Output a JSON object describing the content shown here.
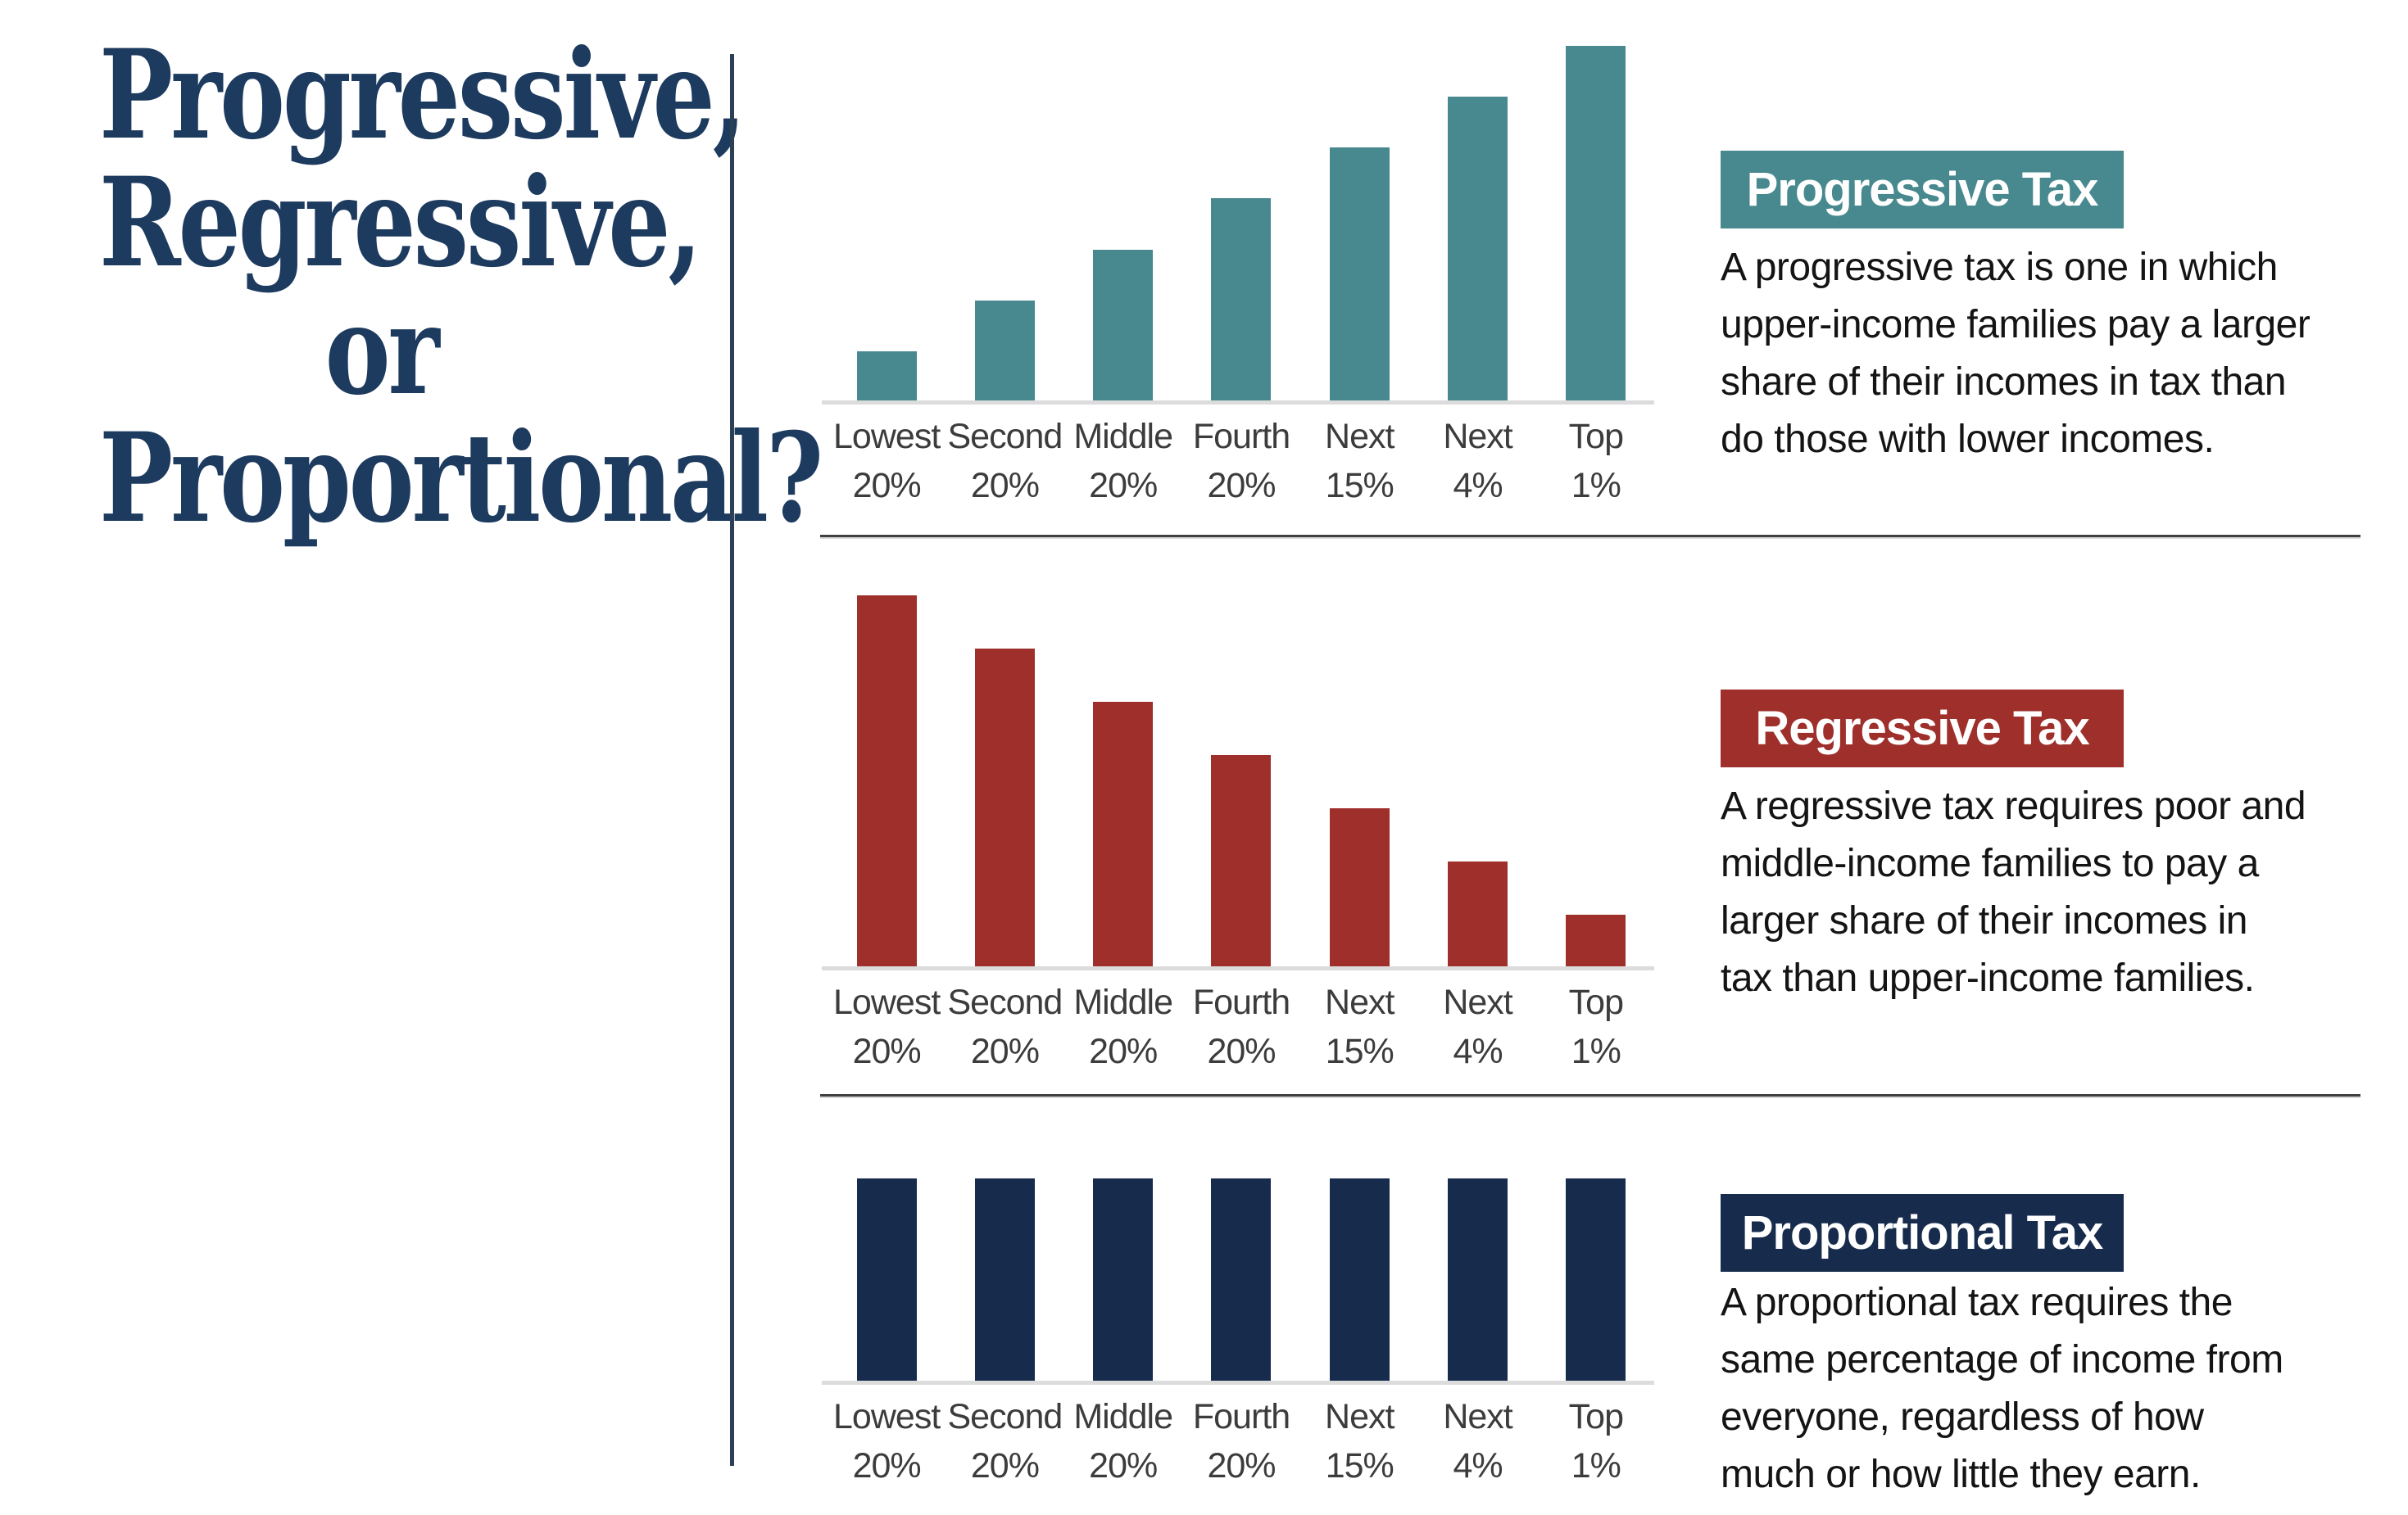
{
  "title": "Progressive,\nRegressive, or\nProportional?",
  "colors": {
    "title_navy": "#1d3a5f",
    "divider_navy": "#2b4054",
    "separator_gray": "#3f3f3f",
    "axis_gray": "#dcdcdc",
    "label_gray": "#3c3c3c",
    "teal": "#47898e",
    "red": "#9e2f2b",
    "navy": "#172c4d",
    "badge_text": "#ffffff"
  },
  "category_labels": [
    {
      "line1": "Lowest",
      "line2": "20%"
    },
    {
      "line1": "Second",
      "line2": "20%"
    },
    {
      "line1": "Middle",
      "line2": "20%"
    },
    {
      "line1": "Fourth",
      "line2": "20%"
    },
    {
      "line1": "Next",
      "line2": "15%"
    },
    {
      "line1": "Next",
      "line2": "4%"
    },
    {
      "line1": "Top",
      "line2": "1%"
    }
  ],
  "chart_data": [
    {
      "type": "bar",
      "title": "Progressive Tax",
      "bar_color": "#47898e",
      "categories": [
        "Lowest 20%",
        "Second 20%",
        "Middle 20%",
        "Fourth 20%",
        "Next 15%",
        "Next 4%",
        "Top 1%"
      ],
      "values": [
        1,
        2,
        3,
        4,
        5,
        6,
        7
      ],
      "ylim": [
        0,
        7
      ],
      "xlabel": "",
      "ylabel": "",
      "grid": false,
      "legend": "none",
      "description": "A progressive tax is one in which\nupper-income families pay a larger\nshare of their incomes in tax than\ndo those with lower incomes."
    },
    {
      "type": "bar",
      "title": "Regressive Tax",
      "bar_color": "#9e2f2b",
      "categories": [
        "Lowest 20%",
        "Second 20%",
        "Middle 20%",
        "Fourth 20%",
        "Next 15%",
        "Next 4%",
        "Top 1%"
      ],
      "values": [
        7,
        6,
        5,
        4,
        3,
        2,
        1
      ],
      "ylim": [
        0,
        7
      ],
      "xlabel": "",
      "ylabel": "",
      "grid": false,
      "legend": "none",
      "description": "A regressive tax requires poor and\nmiddle-income families to pay a\nlarger share of their incomes in\ntax than upper-income families."
    },
    {
      "type": "bar",
      "title": "Proportional Tax",
      "bar_color": "#172c4d",
      "categories": [
        "Lowest 20%",
        "Second 20%",
        "Middle 20%",
        "Fourth 20%",
        "Next 15%",
        "Next 4%",
        "Top 1%"
      ],
      "values": [
        4,
        4,
        4,
        4,
        4,
        4,
        4
      ],
      "ylim": [
        0,
        7
      ],
      "xlabel": "",
      "ylabel": "",
      "grid": false,
      "legend": "none",
      "description": "A proportional tax requires the\nsame percentage of income from\neveryone, regardless of how\nmuch or how little they earn."
    }
  ]
}
